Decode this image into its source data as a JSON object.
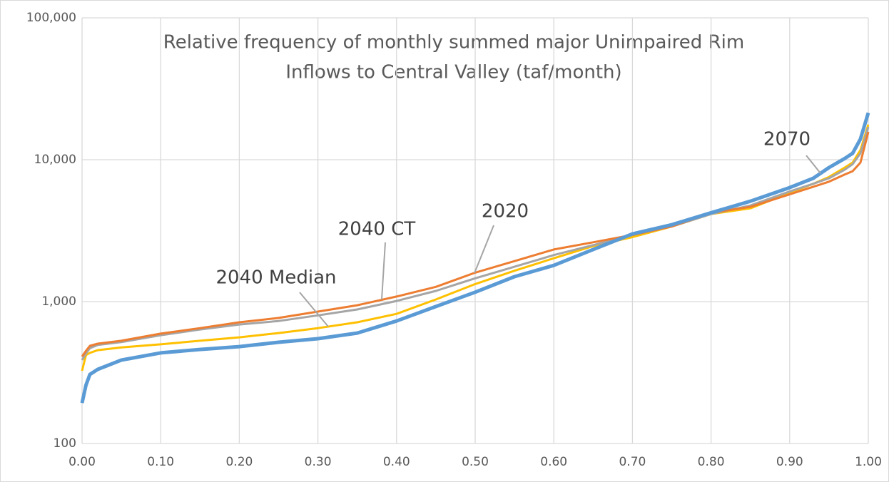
{
  "chart_data": {
    "type": "line",
    "title": [
      "Relative frequency of monthly summed major Unimpaired Rim",
      "Inflows to Central Valley (taf/month)"
    ],
    "x": [
      0,
      0.005,
      0.01,
      0.02,
      0.05,
      0.1,
      0.15,
      0.2,
      0.25,
      0.3,
      0.35,
      0.4,
      0.45,
      0.5,
      0.55,
      0.6,
      0.65,
      0.7,
      0.75,
      0.8,
      0.85,
      0.9,
      0.93,
      0.95,
      0.97,
      0.98,
      0.99,
      1.0
    ],
    "series": [
      {
        "name": "2040 Median",
        "color": "#ffc000",
        "values": [
          325,
          420,
          435,
          455,
          475,
          500,
          530,
          560,
          600,
          650,
          715,
          820,
          1035,
          1330,
          1650,
          2020,
          2460,
          2850,
          3380,
          4140,
          4540,
          5840,
          6770,
          7560,
          8800,
          9550,
          11700,
          17700
        ]
      },
      {
        "name": "2040 CT",
        "color": "#a5a5a5",
        "values": [
          387,
          430,
          470,
          495,
          518,
          580,
          635,
          690,
          730,
          800,
          880,
          1010,
          1190,
          1460,
          1760,
          2130,
          2500,
          2950,
          3380,
          4140,
          4760,
          5970,
          6770,
          7400,
          8500,
          9300,
          11100,
          17000
        ]
      },
      {
        "name": "2020",
        "color": "#ed7d31",
        "values": [
          410,
          450,
          488,
          505,
          530,
          595,
          650,
          715,
          767,
          850,
          943,
          1085,
          1270,
          1600,
          1930,
          2330,
          2620,
          2950,
          3380,
          4230,
          4650,
          5700,
          6450,
          7000,
          7860,
          8300,
          9550,
          15700
        ]
      },
      {
        "name": "2070",
        "color": "#5b9bd5",
        "values": [
          193,
          258,
          307,
          333,
          387,
          435,
          460,
          482,
          517,
          548,
          600,
          730,
          923,
          1165,
          1500,
          1800,
          2330,
          3000,
          3480,
          4230,
          5100,
          6360,
          7400,
          8800,
          10200,
          11100,
          14000,
          21400
        ]
      }
    ],
    "xlim": [
      0,
      1
    ],
    "xticks": [
      {
        "value": 0,
        "label": "0.00"
      },
      {
        "value": 0.1,
        "label": "0.10"
      },
      {
        "value": 0.2,
        "label": "0.20"
      },
      {
        "value": 0.3,
        "label": "0.30"
      },
      {
        "value": 0.4,
        "label": "0.40"
      },
      {
        "value": 0.5,
        "label": "0.50"
      },
      {
        "value": 0.6,
        "label": "0.60"
      },
      {
        "value": 0.7,
        "label": "0.70"
      },
      {
        "value": 0.8,
        "label": "0.80"
      },
      {
        "value": 0.9,
        "label": "0.90"
      },
      {
        "value": 1,
        "label": "1.00"
      }
    ],
    "ylim": [
      100,
      100000
    ],
    "yticks": [
      100,
      {
        "value": 1000,
        "label": "1,000"
      },
      {
        "value": 10000,
        "label": "10,000"
      },
      {
        "value": 100000,
        "label": "100,000"
      }
    ],
    "log_y": true,
    "grid": true,
    "annotations": [
      "2070",
      "2020",
      "2040 CT",
      "2040 Median"
    ]
  }
}
